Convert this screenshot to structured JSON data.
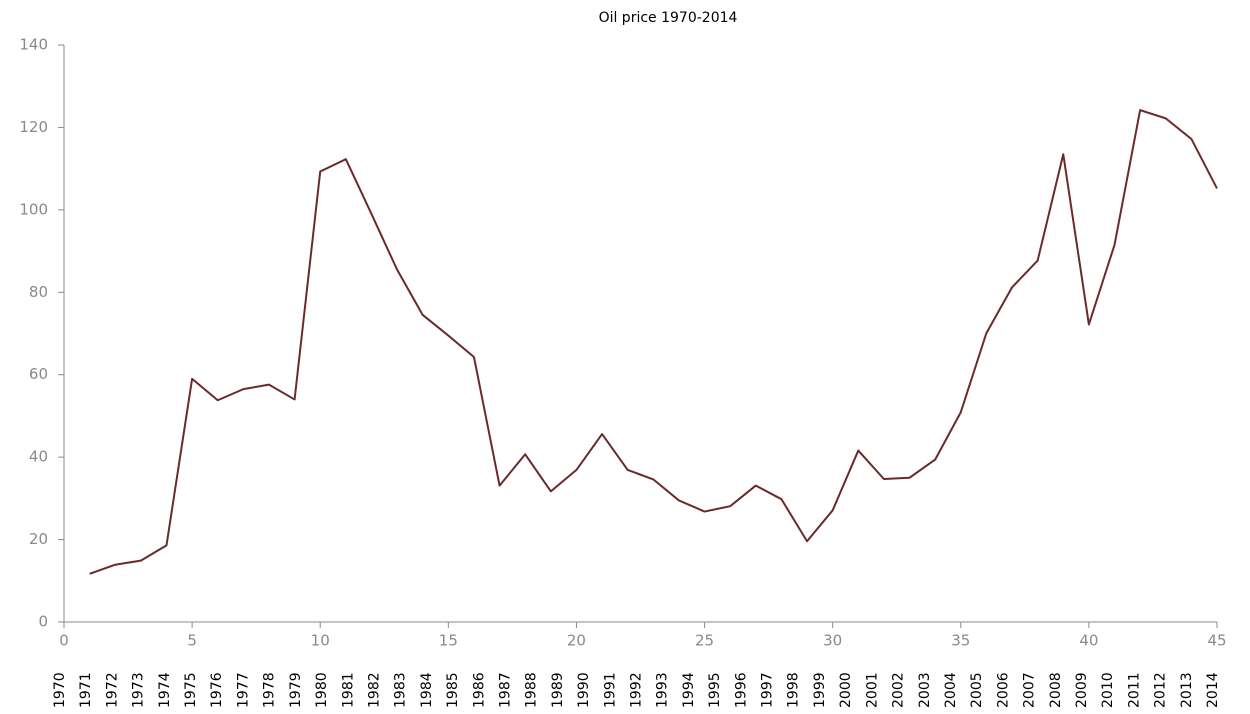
{
  "chart_data": {
    "type": "line",
    "title": "Oil price 1970-2014",
    "x": [
      1,
      2,
      3,
      4,
      5,
      6,
      7,
      8,
      9,
      10,
      11,
      12,
      13,
      14,
      15,
      16,
      17,
      18,
      19,
      20,
      21,
      22,
      23,
      24,
      25,
      26,
      27,
      28,
      29,
      30,
      31,
      32,
      33,
      34,
      35,
      36,
      37,
      38,
      39,
      40,
      41,
      42,
      43,
      44,
      45
    ],
    "series": [
      {
        "name": "Oil price",
        "color": "#6b2a2a",
        "values": [
          11.7,
          13.9,
          14.9,
          18.6,
          59,
          53.8,
          56.5,
          57.6,
          54,
          109.3,
          112.3,
          99,
          85.5,
          74.5,
          69.5,
          64.3,
          33.1,
          40.7,
          31.7,
          36.9,
          45.6,
          36.9,
          34.6,
          29.5,
          26.8,
          28.1,
          33.1,
          29.8,
          19.6,
          27.1,
          41.6,
          34.7,
          35,
          39.4,
          50.9,
          70.1,
          81.2,
          87.7,
          113.5,
          72.2,
          91.5,
          124.2,
          122.2,
          117.2,
          105.2
        ]
      }
    ],
    "categories": [
      "1970",
      "1971",
      "1972",
      "1973",
      "1974",
      "1975",
      "1976",
      "1977",
      "1978",
      "1979",
      "1980",
      "1981",
      "1982",
      "1983",
      "1984",
      "1985",
      "1986",
      "1987",
      "1988",
      "1989",
      "1990",
      "1991",
      "1992",
      "1993",
      "1994",
      "1995",
      "1996",
      "1997",
      "1998",
      "1999",
      "2000",
      "2001",
      "2002",
      "2003",
      "2004",
      "2005",
      "2006",
      "2007",
      "2008",
      "2009",
      "2010",
      "2011",
      "2012",
      "2013",
      "2014"
    ],
    "xlim": [
      0,
      45
    ],
    "xticks": [
      0,
      5,
      10,
      15,
      20,
      25,
      30,
      35,
      40,
      45
    ],
    "ylim": [
      0,
      140
    ],
    "yticks": [
      0,
      20,
      40,
      60,
      80,
      100,
      120,
      140
    ]
  }
}
